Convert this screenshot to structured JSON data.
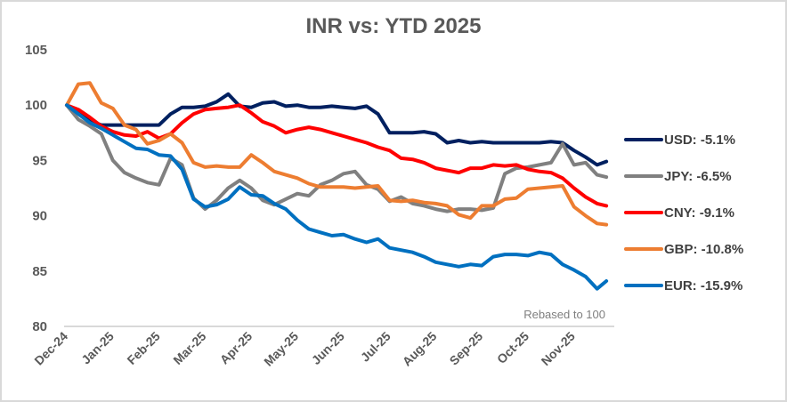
{
  "chart_data": {
    "type": "line",
    "title": "INR vs: YTD 2025",
    "xlabel": "",
    "ylabel": "",
    "annotation": "Rebased to 100",
    "ylim": [
      80,
      105
    ],
    "yticks": [
      "80",
      "85",
      "90",
      "95",
      "100",
      "105"
    ],
    "xtick_labels": [
      "Dec-24",
      "Jan-25",
      "Feb-25",
      "Mar-25",
      "Apr-25",
      "May-25",
      "Jun-25",
      "Jul-25",
      "Aug-25",
      "Sep-25",
      "Oct-25",
      "Nov-25"
    ],
    "x_range_months": [
      0,
      11.7
    ],
    "grid": false,
    "legend_position": "right",
    "x": [
      0,
      0.25,
      0.5,
      0.75,
      1,
      1.25,
      1.5,
      1.75,
      2,
      2.25,
      2.5,
      2.75,
      3,
      3.25,
      3.5,
      3.75,
      4,
      4.25,
      4.5,
      4.75,
      5,
      5.25,
      5.5,
      5.75,
      6,
      6.25,
      6.5,
      6.75,
      7,
      7.25,
      7.5,
      7.75,
      8,
      8.25,
      8.5,
      8.75,
      9,
      9.25,
      9.5,
      9.75,
      10,
      10.25,
      10.5,
      10.75,
      11,
      11.25,
      11.5,
      11.7
    ],
    "series": [
      {
        "name": "USD",
        "legend": "USD: -5.1%",
        "color": "#002060",
        "values": [
          100,
          99.3,
          98.6,
          98.2,
          98.2,
          98.2,
          98.2,
          98.2,
          98.2,
          99.2,
          99.8,
          99.8,
          99.9,
          100.3,
          101,
          99.9,
          99.8,
          100.2,
          100.3,
          99.9,
          100,
          99.8,
          99.8,
          99.9,
          99.8,
          99.7,
          99.9,
          99.2,
          97.5,
          97.5,
          97.5,
          97.6,
          97.4,
          96.6,
          96.8,
          96.6,
          96.7,
          96.6,
          96.6,
          96.6,
          96.6,
          96.6,
          96.7,
          96.6,
          95.9,
          95.3,
          94.6,
          94.9
        ]
      },
      {
        "name": "JPY",
        "legend": "JPY: -6.5%",
        "color": "#808080",
        "values": [
          100,
          98.7,
          98.1,
          97.4,
          95,
          93.9,
          93.4,
          93,
          92.8,
          95.2,
          94.6,
          91.6,
          90.6,
          91.4,
          92.5,
          93.2,
          92.5,
          91.4,
          91,
          91.5,
          92,
          91.8,
          92.8,
          93.2,
          93.8,
          94,
          92.8,
          92.4,
          91.3,
          91.7,
          91.1,
          90.9,
          90.6,
          90.4,
          90.6,
          90.6,
          90.5,
          90.7,
          93.8,
          94.3,
          94.4,
          94.6,
          94.8,
          96.5,
          94.6,
          94.8,
          93.7,
          93.5
        ]
      },
      {
        "name": "CNY",
        "legend": "CNY: -9.1%",
        "color": "#ff0000",
        "values": [
          100,
          99.6,
          98.9,
          98.1,
          97.6,
          97.3,
          97.2,
          97.6,
          97,
          97.4,
          98.4,
          99.2,
          99.6,
          99.7,
          99.8,
          100,
          99.3,
          98.5,
          98.1,
          97.5,
          97.8,
          98,
          97.8,
          97.5,
          97.2,
          96.9,
          96.6,
          96.2,
          95.9,
          95.2,
          95.1,
          94.8,
          94.3,
          94.1,
          93.9,
          94.3,
          94.3,
          94.6,
          94.5,
          94.6,
          94.2,
          94,
          93.9,
          93.4,
          92.5,
          91.7,
          91.1,
          90.9
        ]
      },
      {
        "name": "GBP",
        "legend": "GBP: -10.8%",
        "color": "#ed7d31",
        "values": [
          100,
          101.9,
          102,
          100.2,
          99.7,
          98.2,
          97.8,
          96.5,
          96.8,
          97.4,
          96.6,
          94.8,
          94.4,
          94.5,
          94.4,
          94.4,
          95.5,
          94.8,
          94,
          93.7,
          93.4,
          92.9,
          92.6,
          92.6,
          92.6,
          92.5,
          92.6,
          92.7,
          91.4,
          91.3,
          91.4,
          91.2,
          91.1,
          90.9,
          90.1,
          89.8,
          90.9,
          90.9,
          91.5,
          91.6,
          92.4,
          92.5,
          92.6,
          92.7,
          90.8,
          90,
          89.3,
          89.2
        ]
      },
      {
        "name": "EUR",
        "legend": "EUR: -15.9%",
        "color": "#0070c0",
        "values": [
          100,
          99.2,
          98.4,
          97.9,
          97.3,
          96.7,
          96.1,
          96,
          95.5,
          95.4,
          94.2,
          91.5,
          90.8,
          91,
          91.5,
          92.6,
          91.9,
          91.8,
          91.1,
          90.6,
          89.6,
          88.8,
          88.5,
          88.2,
          88.3,
          87.9,
          87.6,
          87.9,
          87.1,
          86.9,
          86.7,
          86.3,
          85.8,
          85.6,
          85.4,
          85.6,
          85.5,
          86.3,
          86.5,
          86.5,
          86.4,
          86.7,
          86.5,
          85.6,
          85.1,
          84.5,
          83.4,
          84.1
        ]
      }
    ]
  }
}
